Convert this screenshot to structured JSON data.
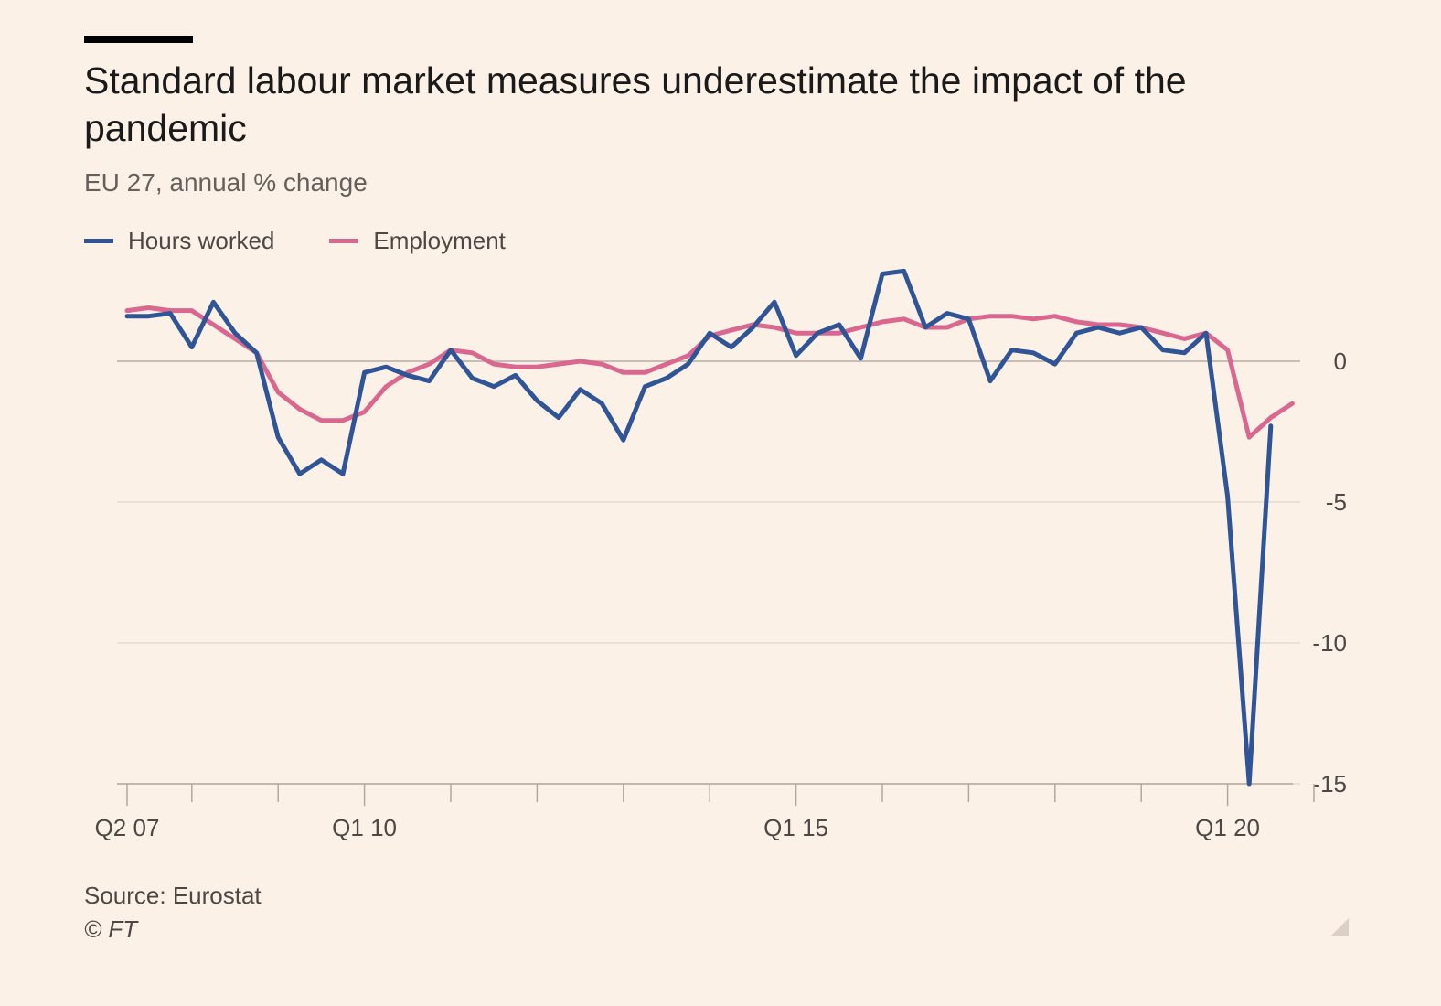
{
  "header": {
    "title": "Standard labour market measures underestimate the impact of the pandemic",
    "subtitle": "EU 27, annual % change"
  },
  "footer": {
    "source": "Source: Eurostat",
    "copyright": "© FT"
  },
  "colors": {
    "background": "#fcf1e7",
    "hours": "#2f5597",
    "employment": "#d9678f",
    "gridline": "#e4dad1",
    "zeroline": "#c9beb5"
  },
  "chart_data": {
    "type": "line",
    "title": "Standard labour market measures underestimate the impact of the pandemic",
    "subtitle": "EU 27, annual % change",
    "xlabel": "",
    "ylabel": "",
    "ylim": [
      -15,
      3
    ],
    "yticks": [
      0,
      -5,
      -10,
      -15
    ],
    "ytick_labels": [
      "0",
      "-5",
      "-10",
      "-15"
    ],
    "x_start": "Q2 07",
    "x_labels": [
      {
        "label": "Q2 07",
        "index": 0
      },
      {
        "label": "Q1 10",
        "index": 11
      },
      {
        "label": "Q1 15",
        "index": 31
      },
      {
        "label": "Q1 20",
        "index": 51
      }
    ],
    "legend_position": "top-left",
    "series": [
      {
        "name": "Hours worked",
        "color": "#2f5597",
        "values": [
          1.6,
          1.6,
          1.7,
          0.5,
          2.1,
          1.0,
          0.3,
          -2.7,
          -4.0,
          -3.5,
          -4.0,
          -0.4,
          -0.2,
          -0.5,
          -0.7,
          0.4,
          -0.6,
          -0.9,
          -0.5,
          -1.4,
          -2.0,
          -1.0,
          -1.5,
          -2.8,
          -0.9,
          -0.6,
          -0.1,
          1.0,
          0.5,
          1.2,
          2.1,
          0.2,
          1.0,
          1.3,
          0.1,
          3.1,
          3.2,
          1.2,
          1.7,
          1.5,
          -0.7,
          0.4,
          0.3,
          -0.1,
          1.0,
          1.2,
          1.0,
          1.2,
          0.4,
          0.3,
          1.0,
          -4.8,
          -15.0,
          -2.3
        ]
      },
      {
        "name": "Employment",
        "color": "#d9678f",
        "values": [
          1.8,
          1.9,
          1.8,
          1.8,
          1.3,
          0.8,
          0.3,
          -1.1,
          -1.7,
          -2.1,
          -2.1,
          -1.8,
          -0.9,
          -0.4,
          -0.1,
          0.4,
          0.3,
          -0.1,
          -0.2,
          -0.2,
          -0.1,
          0.0,
          -0.1,
          -0.4,
          -0.4,
          -0.1,
          0.2,
          0.9,
          1.1,
          1.3,
          1.2,
          1.0,
          1.0,
          1.0,
          1.2,
          1.4,
          1.5,
          1.2,
          1.2,
          1.5,
          1.6,
          1.6,
          1.5,
          1.6,
          1.4,
          1.3,
          1.3,
          1.2,
          1.0,
          0.8,
          1.0,
          0.4,
          -2.7,
          -2.0,
          -1.5
        ]
      }
    ]
  }
}
